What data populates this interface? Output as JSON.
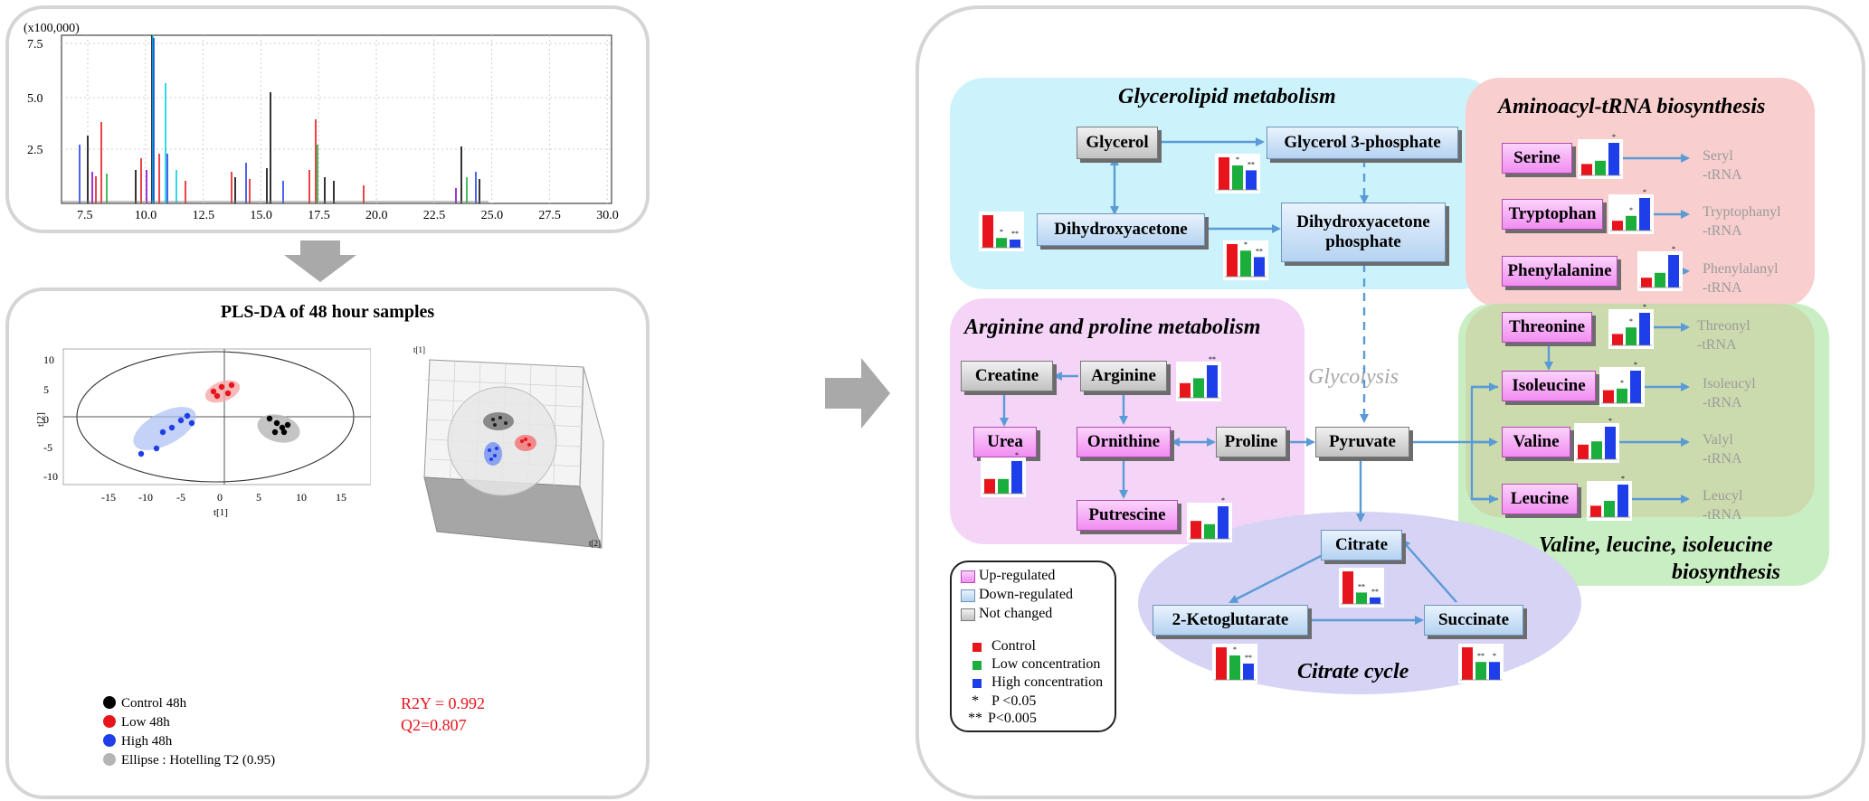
{
  "chromatogram": {
    "y_unit_label": "(x100,000)",
    "y_ticks": [
      "7.5",
      "5.0",
      "2.5"
    ],
    "x_ticks": [
      "7.5",
      "10.0",
      "12.5",
      "15.0",
      "17.5",
      "20.0",
      "22.5",
      "25.0",
      "27.5",
      "30.0"
    ]
  },
  "plsda": {
    "title": "PLS-DA of 48 hour samples",
    "x_axis_label": "t[1]",
    "y_axis_label": "t[2]",
    "x_ticks": [
      "-15",
      "-10",
      "-5",
      "0",
      "5",
      "10",
      "15"
    ],
    "y_ticks": [
      "10",
      "5",
      "0",
      "-5",
      "-10"
    ],
    "legend": [
      "Control 48h",
      "Low 48h",
      "High 48h",
      "Ellipse : Hotelling T2 (0.95)"
    ],
    "r2y": "R2Y = 0.992",
    "q2": "Q2=0.807",
    "plot3d_label_x": "t[1]",
    "plot3d_label_y": "t[2]"
  },
  "regions": {
    "glycerolipid": "Glycerolipid metabolism",
    "aminoacyl": "Aminoacyl-tRNA biosynthesis",
    "arginine": "Arginine and proline metabolism",
    "glycolysis": "Glycolysis",
    "bcaa_line1": "Valine, leucine, isoleucine",
    "bcaa_line2": "biosynthesis",
    "citrate": "Citrate cycle"
  },
  "metabolites": {
    "glycerol": "Glycerol",
    "glycerol3p": "Glycerol 3-phosphate",
    "dha": "Dihydroxyacetone",
    "dhap_line1": "Dihydroxyacetone",
    "dhap_line2": "phosphate",
    "serine": "Serine",
    "tryptophan": "Tryptophan",
    "phenylalanine": "Phenylalanine",
    "threonine": "Threonine",
    "isoleucine": "Isoleucine",
    "valine": "Valine",
    "leucine": "Leucine",
    "creatine": "Creatine",
    "arginine": "Arginine",
    "urea": "Urea",
    "ornithine": "Ornithine",
    "proline": "Proline",
    "putrescine": "Putrescine",
    "pyruvate": "Pyruvate",
    "citrate": "Citrate",
    "ketoglutarate": "2-Ketoglutarate",
    "succinate": "Succinate"
  },
  "trna": {
    "seryl": [
      "Seryl",
      "-tRNA"
    ],
    "tryptophanyl": [
      "Tryptophanyl",
      "-tRNA"
    ],
    "phenylalanyl": [
      "Phenylalanyl",
      "-tRNA"
    ],
    "threonyl": [
      "Threonyl",
      "-tRNA"
    ],
    "isoleucyl": [
      "Isoleucyl",
      "-tRNA"
    ],
    "valyl": [
      "Valyl",
      "-tRNA"
    ],
    "leucyl": [
      "Leucyl",
      "-tRNA"
    ]
  },
  "legend": {
    "up": "Up-regulated",
    "down": "Down-regulated",
    "same": "Not changed",
    "control": "Control",
    "low": "Low concentration",
    "high": "High concentration",
    "p1_sym": "*",
    "p1": "P <0.05",
    "p2_sym": "**",
    "p2": "P<0.005"
  },
  "colors": {
    "control": "#e8141b",
    "low": "#1aae3c",
    "high": "#1d3ee8",
    "arrow": "#5b9bd5",
    "up_box": "#f18df1",
    "down_box": "#b5d3f1",
    "same_box": "#c2c2c2"
  },
  "bars": [
    {
      "id": "glycerol3p",
      "values": [
        1.0,
        0.75,
        0.6
      ],
      "sig": [
        "",
        "*",
        "**"
      ]
    },
    {
      "id": "dha",
      "values": [
        1.0,
        0.3,
        0.25
      ],
      "sig": [
        "",
        "*",
        "**"
      ]
    },
    {
      "id": "dhap",
      "values": [
        1.0,
        0.8,
        0.6
      ],
      "sig": [
        "",
        "*",
        "**"
      ]
    },
    {
      "id": "serine",
      "values": [
        0.35,
        0.45,
        1.0
      ],
      "sig": [
        "",
        "",
        "*"
      ]
    },
    {
      "id": "tryptophan",
      "values": [
        0.3,
        0.45,
        1.0
      ],
      "sig": [
        "",
        "*",
        "*"
      ]
    },
    {
      "id": "phenylalanine",
      "values": [
        0.3,
        0.45,
        1.0
      ],
      "sig": [
        "",
        "",
        "*"
      ]
    },
    {
      "id": "threonine",
      "values": [
        0.35,
        0.55,
        1.0
      ],
      "sig": [
        "",
        "*",
        "*"
      ]
    },
    {
      "id": "isoleucine",
      "values": [
        0.4,
        0.45,
        1.0
      ],
      "sig": [
        "",
        "*",
        "*"
      ]
    },
    {
      "id": "valine",
      "values": [
        0.45,
        0.55,
        1.0
      ],
      "sig": [
        "",
        "",
        "*"
      ]
    },
    {
      "id": "leucine",
      "values": [
        0.35,
        0.5,
        1.0
      ],
      "sig": [
        "",
        "",
        "*"
      ]
    },
    {
      "id": "arginine",
      "values": [
        0.45,
        0.6,
        1.0
      ],
      "sig": [
        "",
        "",
        "**"
      ]
    },
    {
      "id": "urea",
      "values": [
        0.45,
        0.45,
        1.0
      ],
      "sig": [
        "",
        "",
        "*"
      ]
    },
    {
      "id": "putrescine",
      "values": [
        0.55,
        0.45,
        1.0
      ],
      "sig": [
        "",
        "",
        "*"
      ]
    },
    {
      "id": "citrate",
      "values": [
        1.0,
        0.35,
        0.2
      ],
      "sig": [
        "",
        "**",
        "**"
      ]
    },
    {
      "id": "ketoglutarate",
      "values": [
        1.0,
        0.75,
        0.5
      ],
      "sig": [
        "",
        "*",
        "**"
      ]
    },
    {
      "id": "succinate",
      "values": [
        1.0,
        0.55,
        0.55
      ],
      "sig": [
        "",
        "**",
        "*"
      ]
    }
  ]
}
